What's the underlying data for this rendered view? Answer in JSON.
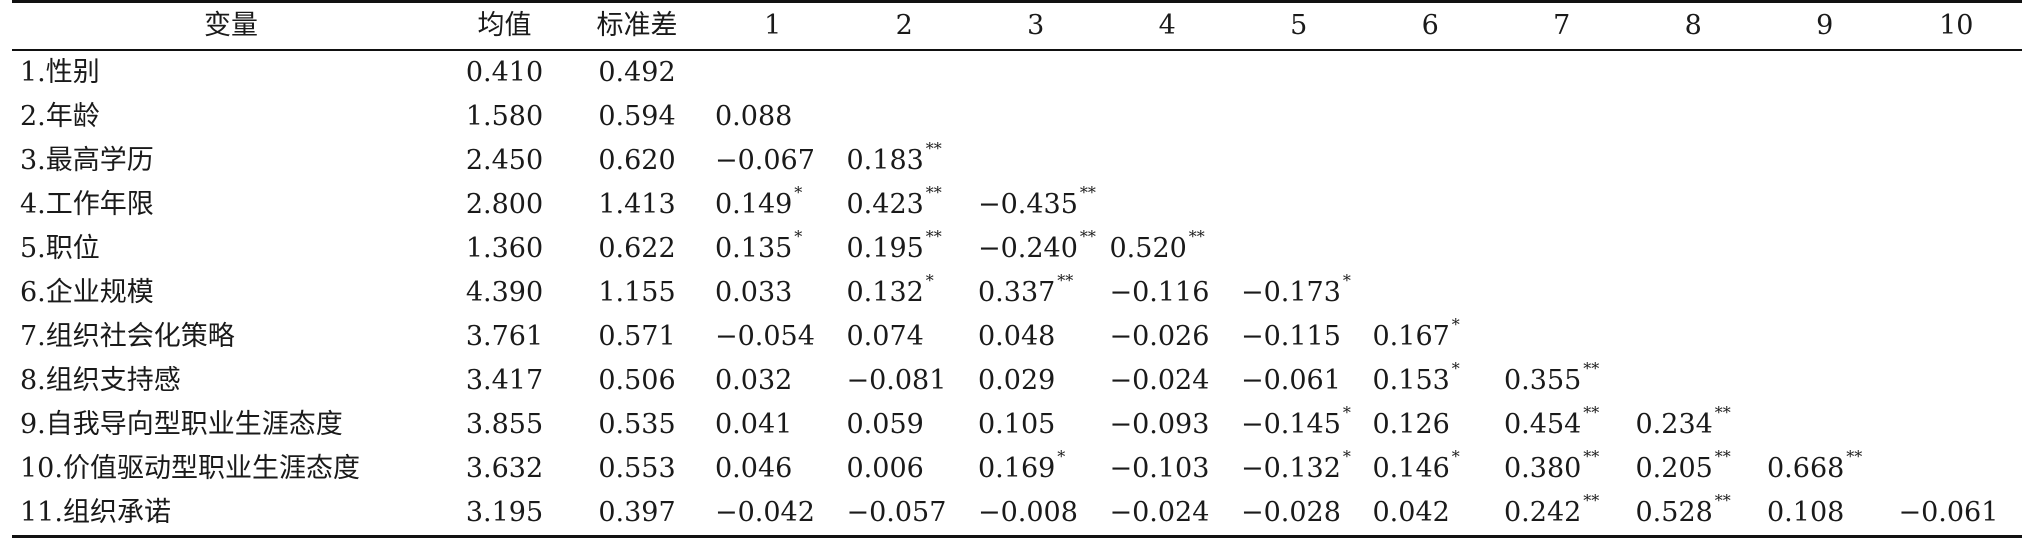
{
  "table": {
    "headers": [
      "变量",
      "均值",
      "标准差",
      "1",
      "2",
      "3",
      "4",
      "5",
      "6",
      "7",
      "8",
      "9",
      "10"
    ],
    "rows": [
      {
        "var": "1.性别",
        "mean": "0.410",
        "sd": "0.492",
        "c": []
      },
      {
        "var": "2.年龄",
        "mean": "1.580",
        "sd": "0.594",
        "c": [
          {
            "v": "0.088",
            "s": ""
          }
        ]
      },
      {
        "var": "3.最高学历",
        "mean": "2.450",
        "sd": "0.620",
        "c": [
          {
            "v": "−0.067",
            "s": ""
          },
          {
            "v": "0.183",
            "s": "**"
          }
        ]
      },
      {
        "var": "4.工作年限",
        "mean": "2.800",
        "sd": "1.413",
        "c": [
          {
            "v": "0.149",
            "s": "*"
          },
          {
            "v": "0.423",
            "s": "**"
          },
          {
            "v": "−0.435",
            "s": "**"
          }
        ]
      },
      {
        "var": "5.职位",
        "mean": "1.360",
        "sd": "0.622",
        "c": [
          {
            "v": "0.135",
            "s": "*"
          },
          {
            "v": "0.195",
            "s": "**"
          },
          {
            "v": "−0.240",
            "s": "**"
          },
          {
            "v": "0.520",
            "s": "**"
          }
        ]
      },
      {
        "var": "6.企业规模",
        "mean": "4.390",
        "sd": "1.155",
        "c": [
          {
            "v": "0.033",
            "s": ""
          },
          {
            "v": "0.132",
            "s": "*"
          },
          {
            "v": "0.337",
            "s": "**"
          },
          {
            "v": "−0.116",
            "s": ""
          },
          {
            "v": "−0.173",
            "s": "*"
          }
        ]
      },
      {
        "var": "7.组织社会化策略",
        "mean": "3.761",
        "sd": "0.571",
        "c": [
          {
            "v": "−0.054",
            "s": ""
          },
          {
            "v": "0.074",
            "s": ""
          },
          {
            "v": "0.048",
            "s": ""
          },
          {
            "v": "−0.026",
            "s": ""
          },
          {
            "v": "−0.115",
            "s": ""
          },
          {
            "v": "0.167",
            "s": "*"
          }
        ]
      },
      {
        "var": "8.组织支持感",
        "mean": "3.417",
        "sd": "0.506",
        "c": [
          {
            "v": "0.032",
            "s": ""
          },
          {
            "v": "−0.081",
            "s": ""
          },
          {
            "v": "0.029",
            "s": ""
          },
          {
            "v": "−0.024",
            "s": ""
          },
          {
            "v": "−0.061",
            "s": ""
          },
          {
            "v": "0.153",
            "s": "*"
          },
          {
            "v": "0.355",
            "s": "**"
          }
        ]
      },
      {
        "var": "9.自我导向型职业生涯态度",
        "mean": "3.855",
        "sd": "0.535",
        "c": [
          {
            "v": "0.041",
            "s": ""
          },
          {
            "v": "0.059",
            "s": ""
          },
          {
            "v": "0.105",
            "s": ""
          },
          {
            "v": "−0.093",
            "s": ""
          },
          {
            "v": "−0.145",
            "s": "*"
          },
          {
            "v": "0.126",
            "s": ""
          },
          {
            "v": "0.454",
            "s": "**"
          },
          {
            "v": "0.234",
            "s": "**"
          }
        ]
      },
      {
        "var": "10.价值驱动型职业生涯态度",
        "mean": "3.632",
        "sd": "0.553",
        "c": [
          {
            "v": "0.046",
            "s": ""
          },
          {
            "v": "0.006",
            "s": ""
          },
          {
            "v": "0.169",
            "s": "*"
          },
          {
            "v": "−0.103",
            "s": ""
          },
          {
            "v": "−0.132",
            "s": "*"
          },
          {
            "v": "0.146",
            "s": "*"
          },
          {
            "v": "0.380",
            "s": "**"
          },
          {
            "v": "0.205",
            "s": "**"
          },
          {
            "v": "0.668",
            "s": "**"
          }
        ]
      },
      {
        "var": "11.组织承诺",
        "mean": "3.195",
        "sd": "0.397",
        "c": [
          {
            "v": "−0.042",
            "s": ""
          },
          {
            "v": "−0.057",
            "s": ""
          },
          {
            "v": "−0.008",
            "s": ""
          },
          {
            "v": "−0.024",
            "s": ""
          },
          {
            "v": "−0.028",
            "s": ""
          },
          {
            "v": "0.042",
            "s": ""
          },
          {
            "v": "0.242",
            "s": "**"
          },
          {
            "v": "0.528",
            "s": "**"
          },
          {
            "v": "0.108",
            "s": ""
          },
          {
            "v": "−0.061",
            "s": ""
          }
        ]
      }
    ]
  }
}
